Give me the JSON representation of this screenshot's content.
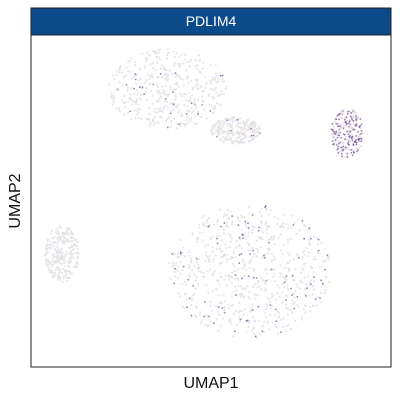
{
  "chart_data": {
    "type": "scatter",
    "facet_title": "PDLIM4",
    "xlabel": "UMAP1",
    "ylabel": "UMAP2",
    "x_ticks": [],
    "y_ticks": [],
    "grid": false,
    "legend": "none",
    "colors": {
      "strip_fill": "#0d4a8a",
      "background_points": "#e2e2e2",
      "low_expression": "#e8e2ee",
      "high_expression": "#7a4f9a"
    },
    "clusters": [
      {
        "name": "upper-left large",
        "x": [
          -6.5,
          0.5
        ],
        "y": [
          3.8,
          9.5
        ],
        "expression": "low"
      },
      {
        "name": "upper-middle small",
        "x": [
          -0.5,
          2.4
        ],
        "y": [
          2.8,
          4.7
        ],
        "expression": "low"
      },
      {
        "name": "right small",
        "x": [
          6.5,
          8.4
        ],
        "y": [
          1.8,
          5.3
        ],
        "expression": "high"
      },
      {
        "name": "far left",
        "x": [
          -10.2,
          -8.2
        ],
        "y": [
          -7.0,
          -3.0
        ],
        "expression": "none"
      },
      {
        "name": "bottom large",
        "x": [
          -3.0,
          6.5
        ],
        "y": [
          -11.0,
          -1.5
        ],
        "expression": "low-moderate"
      }
    ]
  }
}
